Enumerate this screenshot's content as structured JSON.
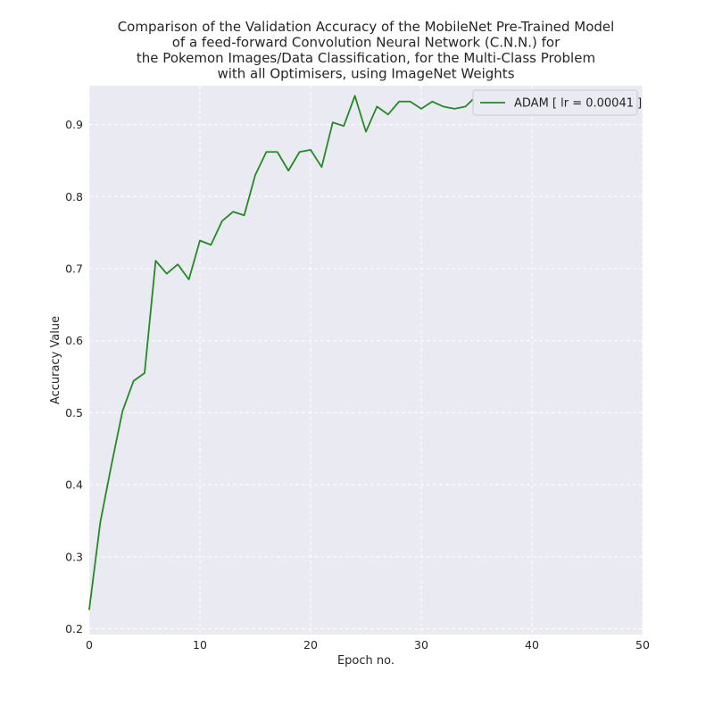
{
  "chart_data": {
    "type": "line",
    "title_lines": [
      "Comparison of the Validation Accuracy of the MobileNet Pre-Trained Model",
      "of a feed-forward Convolution Neural Network (C.N.N.) for",
      "the Pokemon Images/Data Classification, for the Multi-Class Problem",
      "with all Optimisers, using ImageNet Weights"
    ],
    "xlabel": "Epoch no.",
    "ylabel": "Accuracy Value",
    "xlim": [
      0,
      50
    ],
    "ylim": [
      0.192,
      0.954
    ],
    "x_ticks": [
      0,
      10,
      20,
      30,
      40,
      50
    ],
    "y_ticks": [
      0.2,
      0.3,
      0.4,
      0.5,
      0.6,
      0.7,
      0.8,
      0.9
    ],
    "grid": true,
    "legend": {
      "placement": "top-right"
    },
    "background_color": "#eaeaf2",
    "grid_color": "#ffffff",
    "series": [
      {
        "name": "ADAM [ lr = 0.00041 ]",
        "color": "#228b22",
        "x": [
          0,
          1,
          2,
          3,
          4,
          5,
          6,
          7,
          8,
          9,
          10,
          11,
          12,
          13,
          14,
          15,
          16,
          17,
          18,
          19,
          20,
          21,
          22,
          23,
          24,
          25,
          26,
          27,
          28,
          29,
          30,
          31,
          32,
          33,
          34,
          35,
          36,
          37,
          38,
          39,
          40,
          41,
          42,
          43,
          44,
          45,
          46,
          47,
          48,
          49
        ],
        "values": [
          0.227,
          0.348,
          0.427,
          0.502,
          0.544,
          0.555,
          0.711,
          0.693,
          0.706,
          0.685,
          0.739,
          0.733,
          0.766,
          0.779,
          0.774,
          0.83,
          0.862,
          0.862,
          0.836,
          0.862,
          0.865,
          0.841,
          0.903,
          0.898,
          0.94,
          0.89,
          0.925,
          0.914,
          0.932,
          0.932,
          0.922,
          0.932,
          0.925,
          0.922,
          0.925,
          0.94,
          0.93,
          0.917,
          0.93,
          0.927,
          0.925,
          0.925,
          0.932,
          0.935,
          0.927,
          0.922,
          0.919,
          0.917,
          0.93,
          0.922
        ]
      }
    ]
  }
}
